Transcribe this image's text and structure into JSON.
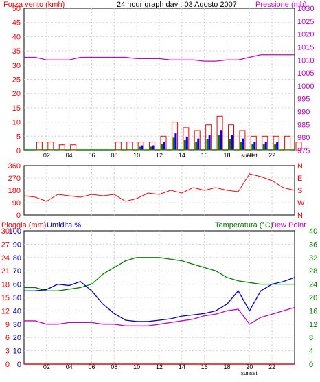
{
  "chart_data": [
    {
      "type": "bar",
      "title": "24 hour graph day : 03 Agosto 2007",
      "ylabel": "Forza vento (kmh)",
      "y2label": "Pressione (mb)",
      "ylim": [
        0,
        50
      ],
      "y2lim": [
        975,
        1030
      ],
      "yticks": [
        "0",
        "5",
        "10",
        "15",
        "20",
        "25",
        "30",
        "35",
        "40",
        "45",
        "50"
      ],
      "y2ticks": [
        "975",
        "980",
        "985",
        "990",
        "995",
        "1000",
        "1005",
        "1010",
        "1015",
        "1020",
        "1025",
        "1030"
      ],
      "xticks": [
        "02",
        "04",
        "06",
        "08",
        "10",
        "12",
        "14",
        "16",
        "18",
        "20",
        "22"
      ],
      "marker_label": "sunset",
      "grid": true,
      "colors": {
        "wind": "#ff0000",
        "pressure": "#cc00cc",
        "bars_green": "#008000",
        "bars_blue": "#0000ff",
        "bars_brown": "#8b3a0a"
      },
      "series": [
        {
          "name": "Pressione (mb)",
          "x": [
            0,
            1,
            2,
            3,
            4,
            5,
            6,
            7,
            8,
            9,
            10,
            11,
            12,
            13,
            14,
            15,
            16,
            17,
            18,
            19,
            20,
            21,
            22,
            23,
            24
          ],
          "values": [
            1011,
            1011,
            1010,
            1010,
            1010,
            1011,
            1011,
            1011,
            1011,
            1011,
            1010.5,
            1010.5,
            1010.5,
            1010,
            1010,
            1010,
            1009.5,
            1009.5,
            1010,
            1010,
            1011,
            1012,
            1012,
            1012,
            1012
          ]
        },
        {
          "name": "Forza vento (kmh)",
          "x": [
            0,
            1,
            2,
            3,
            4,
            5,
            6,
            7,
            8,
            9,
            10,
            11,
            12,
            13,
            14,
            15,
            16,
            17,
            18,
            19,
            20,
            21,
            22,
            23,
            24
          ],
          "values": [
            0,
            3,
            3,
            2,
            2,
            0,
            0,
            0,
            3,
            3,
            3,
            3,
            5,
            10,
            8,
            7,
            9,
            12,
            9,
            7,
            5,
            5,
            5,
            5,
            3
          ]
        }
      ]
    },
    {
      "type": "line",
      "ylim": [
        0,
        360
      ],
      "yticks": [
        "0",
        "90",
        "180",
        "270",
        "360"
      ],
      "y2ticks": [
        "N",
        "E",
        "S",
        "W",
        "N"
      ],
      "xticks": [],
      "colors": {
        "direction": "#ff0000"
      },
      "series": [
        {
          "name": "",
          "x": [
            0,
            1,
            2,
            3,
            4,
            5,
            6,
            7,
            8,
            9,
            10,
            11,
            12,
            13,
            14,
            15,
            16,
            17,
            18,
            19,
            20,
            21,
            22,
            23,
            24
          ],
          "values": [
            140,
            130,
            100,
            150,
            140,
            130,
            150,
            140,
            150,
            100,
            120,
            160,
            150,
            180,
            160,
            200,
            180,
            200,
            180,
            170,
            300,
            280,
            250,
            200,
            180
          ]
        }
      ]
    },
    {
      "type": "line",
      "ylabel": "Pioggia (mm)",
      "ylabel2": "Umidita %",
      "y2label": "Temperatura (°C)",
      "y2label2": "Dew Point",
      "ylim": [
        0,
        30
      ],
      "yticks_rain": [
        "0",
        "3",
        "6",
        "9",
        "12",
        "15",
        "18",
        "21",
        "24",
        "27",
        "30"
      ],
      "yticks_hum": [
        "0",
        "10",
        "20",
        "30",
        "40",
        "50",
        "60",
        "70",
        "80",
        "90",
        "100"
      ],
      "y2ticks": [
        "0",
        "4",
        "8",
        "12",
        "16",
        "20",
        "24",
        "28",
        "32",
        "36",
        "40"
      ],
      "xticks": [
        "02",
        "04",
        "06",
        "08",
        "10",
        "12",
        "14",
        "16",
        "18",
        "20",
        "22"
      ],
      "marker_label": "sunset",
      "grid": true,
      "colors": {
        "rain": "#ff0000",
        "humidity": "#0000cc",
        "temperature": "#008000",
        "dewpoint": "#cc00cc"
      },
      "series": [
        {
          "name": "Umidita %",
          "x": [
            0,
            1,
            2,
            3,
            4,
            5,
            6,
            7,
            8,
            9,
            10,
            11,
            12,
            13,
            14,
            15,
            16,
            17,
            18,
            19,
            20,
            21,
            22,
            23,
            24
          ],
          "values": [
            55,
            55,
            56,
            60,
            59,
            62,
            55,
            45,
            38,
            33,
            32,
            32,
            33,
            34,
            36,
            37,
            38,
            40,
            45,
            55,
            40,
            55,
            60,
            62,
            65
          ]
        },
        {
          "name": "Temperatura (°C)",
          "x": [
            0,
            1,
            2,
            3,
            4,
            5,
            6,
            7,
            8,
            9,
            10,
            11,
            12,
            13,
            14,
            15,
            16,
            17,
            18,
            19,
            20,
            21,
            22,
            23,
            24
          ],
          "values": [
            23,
            23,
            22,
            22,
            22.5,
            23,
            24,
            27,
            29,
            31,
            32,
            32,
            32,
            31.5,
            31,
            30,
            29,
            28,
            26,
            25,
            24.5,
            24,
            24,
            24,
            24
          ]
        },
        {
          "name": "Dew Point",
          "x": [
            0,
            1,
            2,
            3,
            4,
            5,
            6,
            7,
            8,
            9,
            10,
            11,
            12,
            13,
            14,
            15,
            16,
            17,
            18,
            19,
            20,
            21,
            22,
            23,
            24
          ],
          "values": [
            13,
            13,
            12,
            12,
            12.5,
            12.5,
            12.5,
            12,
            12,
            11.5,
            11.5,
            11.5,
            12,
            12.5,
            13,
            13.5,
            14.5,
            15,
            16,
            16.5,
            12,
            14,
            15,
            16,
            17
          ]
        },
        {
          "name": "Pioggia (mm)",
          "x": [
            0,
            24
          ],
          "values": [
            0,
            0
          ]
        }
      ]
    }
  ]
}
